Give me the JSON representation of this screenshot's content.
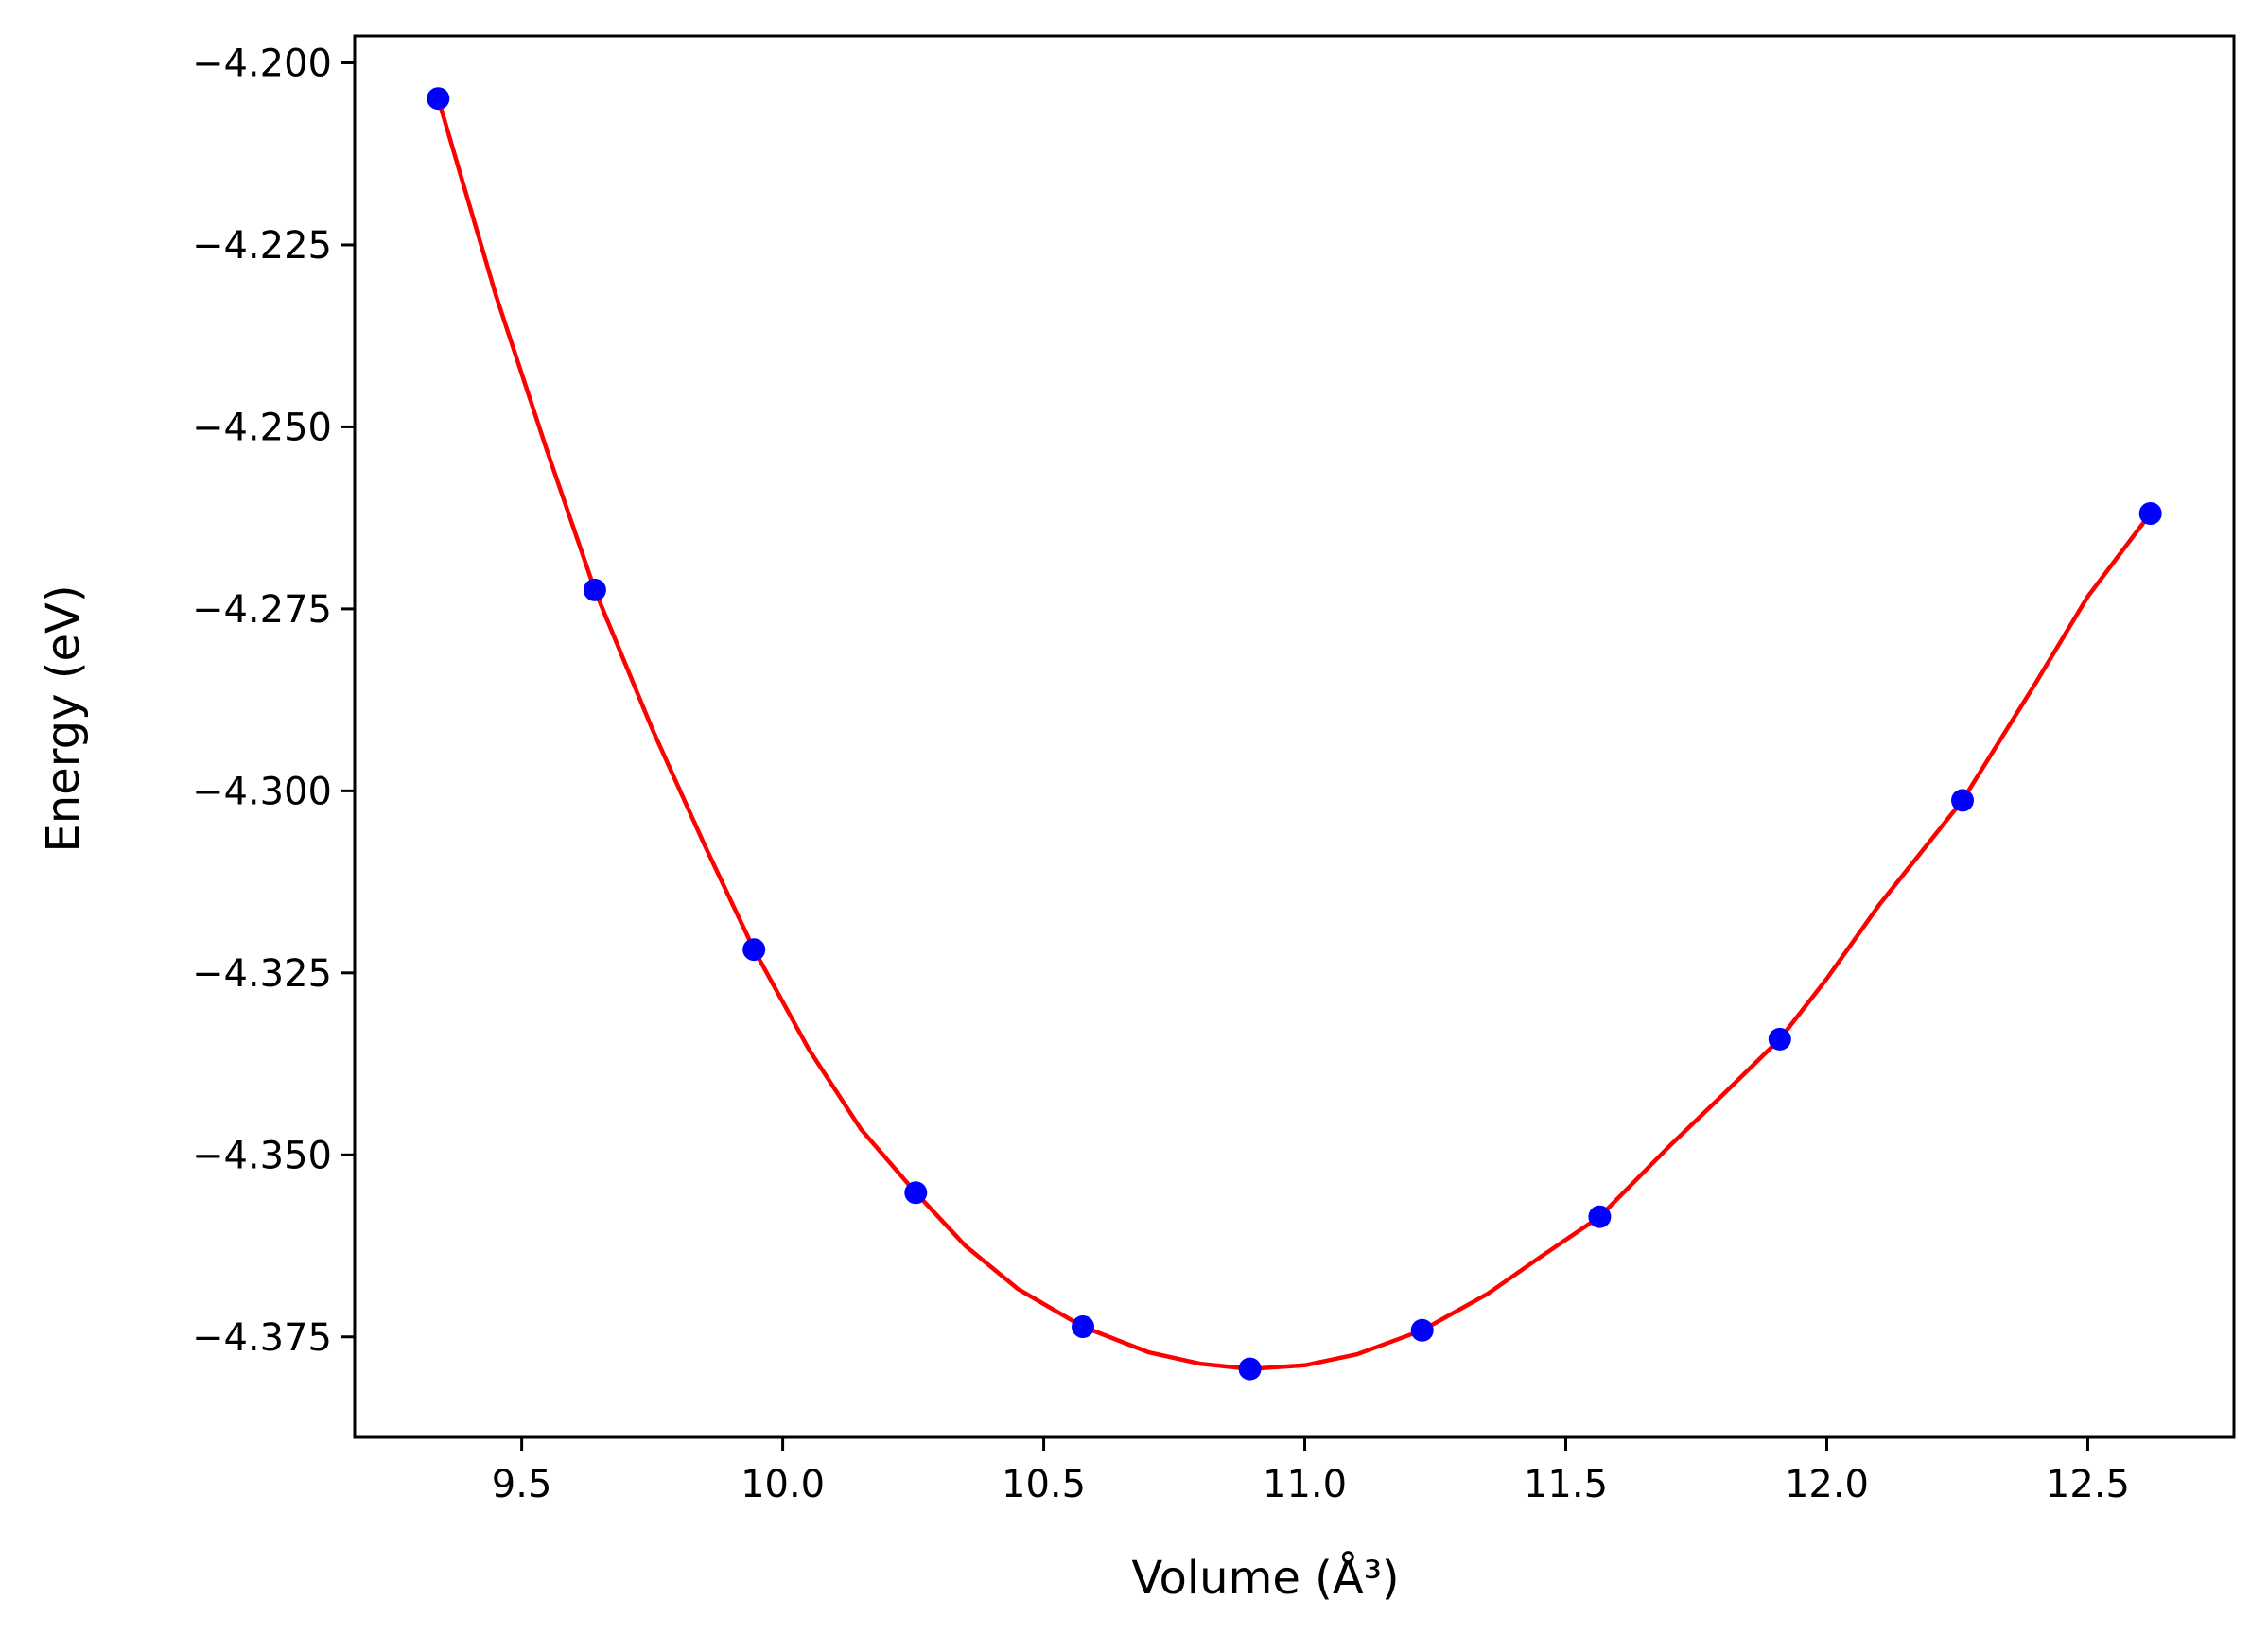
{
  "chart_data": {
    "type": "scatter",
    "title": "",
    "xlabel": "Volume (Å³)",
    "ylabel": "Energy (eV)",
    "xlim": [
      9.18,
      12.78
    ],
    "ylim": [
      -4.3888,
      -4.1963
    ],
    "x_ticks": [
      9.5,
      10.0,
      10.5,
      11.0,
      11.5,
      12.0,
      12.5
    ],
    "x_tick_labels": [
      "9.5",
      "10.0",
      "10.5",
      "11.0",
      "11.5",
      "12.0",
      "12.5"
    ],
    "y_ticks": [
      -4.2,
      -4.225,
      -4.25,
      -4.275,
      -4.3,
      -4.325,
      -4.35,
      -4.375
    ],
    "y_tick_labels": [
      "−4.200",
      "−4.225",
      "−4.250",
      "−4.275",
      "−4.300",
      "−4.325",
      "−4.350",
      "−4.375"
    ],
    "grid": false,
    "legend": "none",
    "series": [
      {
        "kind": "points",
        "color": "#0000ff",
        "x": [
          9.34,
          9.64,
          9.945,
          10.255,
          10.575,
          10.895,
          11.225,
          11.565,
          11.91,
          12.26,
          12.62
        ],
        "y": [
          -4.2049,
          -4.2724,
          -4.3218,
          -4.3552,
          -4.3736,
          -4.3794,
          -4.3741,
          -4.3585,
          -4.3341,
          -4.3013,
          -4.2619
        ]
      },
      {
        "kind": "fit-line",
        "color": "#ff0000",
        "x": [
          9.34,
          9.45,
          9.55,
          9.64,
          9.75,
          9.85,
          9.945,
          10.05,
          10.15,
          10.255,
          10.35,
          10.45,
          10.575,
          10.7,
          10.8,
          10.895,
          11.0,
          11.1,
          11.225,
          11.35,
          11.45,
          11.565,
          11.7,
          11.8,
          11.91,
          12.0,
          12.1,
          12.26,
          12.4,
          12.5,
          12.62
        ],
        "y": [
          -4.2049,
          -4.2318,
          -4.2536,
          -4.2724,
          -4.2915,
          -4.3074,
          -4.3218,
          -4.3355,
          -4.3465,
          -4.3552,
          -4.3625,
          -4.3684,
          -4.3736,
          -4.3771,
          -4.3787,
          -4.3794,
          -4.3789,
          -4.3774,
          -4.3741,
          -4.3691,
          -4.3641,
          -4.3585,
          -4.3487,
          -4.3418,
          -4.3341,
          -4.3258,
          -4.3157,
          -4.3013,
          -4.2852,
          -4.2733,
          -4.2619
        ]
      }
    ]
  }
}
